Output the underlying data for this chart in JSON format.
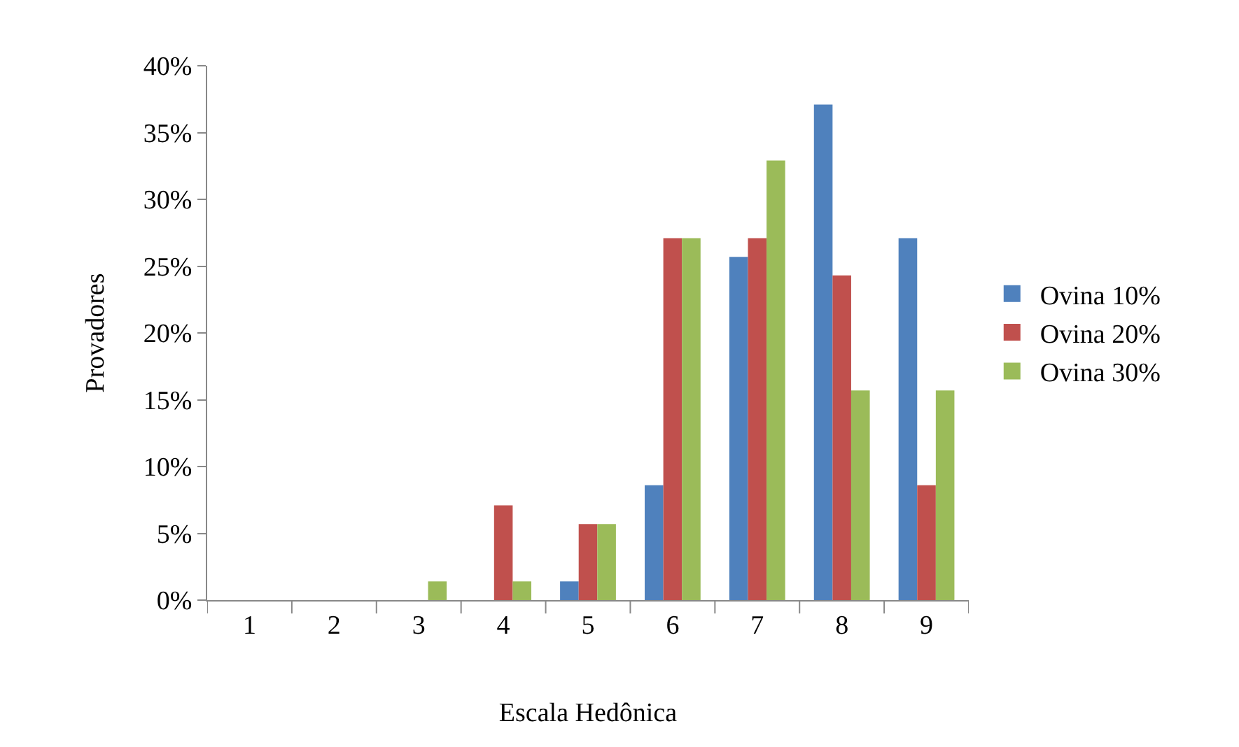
{
  "chart_data": {
    "type": "bar",
    "xlabel": "Escala Hedônica",
    "ylabel": "Provadores",
    "categories": [
      "1",
      "2",
      "3",
      "4",
      "5",
      "6",
      "7",
      "8",
      "9"
    ],
    "series": [
      {
        "name": "Ovina 10%",
        "color": "#4f81bd",
        "values": [
          0,
          0,
          0,
          0,
          1.4,
          8.6,
          25.7,
          37.1,
          27.1
        ]
      },
      {
        "name": "Ovina 20%",
        "color": "#c0504d",
        "values": [
          0,
          0,
          0,
          7.1,
          5.7,
          27.1,
          27.1,
          24.3,
          8.6
        ]
      },
      {
        "name": "Ovina 30%",
        "color": "#9bbb59",
        "values": [
          0,
          0,
          1.4,
          1.4,
          5.7,
          27.1,
          32.9,
          15.7,
          15.7
        ]
      }
    ],
    "ylim": [
      0,
      40
    ],
    "yticks": [
      {
        "value": 0,
        "label": "0%"
      },
      {
        "value": 5,
        "label": "5%"
      },
      {
        "value": 10,
        "label": "10%"
      },
      {
        "value": 15,
        "label": "15%"
      },
      {
        "value": 20,
        "label": "20%"
      },
      {
        "value": 25,
        "label": "25%"
      },
      {
        "value": 30,
        "label": "30%"
      },
      {
        "value": 35,
        "label": "35%"
      },
      {
        "value": 40,
        "label": "40%"
      }
    ],
    "grid": false,
    "legend": "right"
  }
}
